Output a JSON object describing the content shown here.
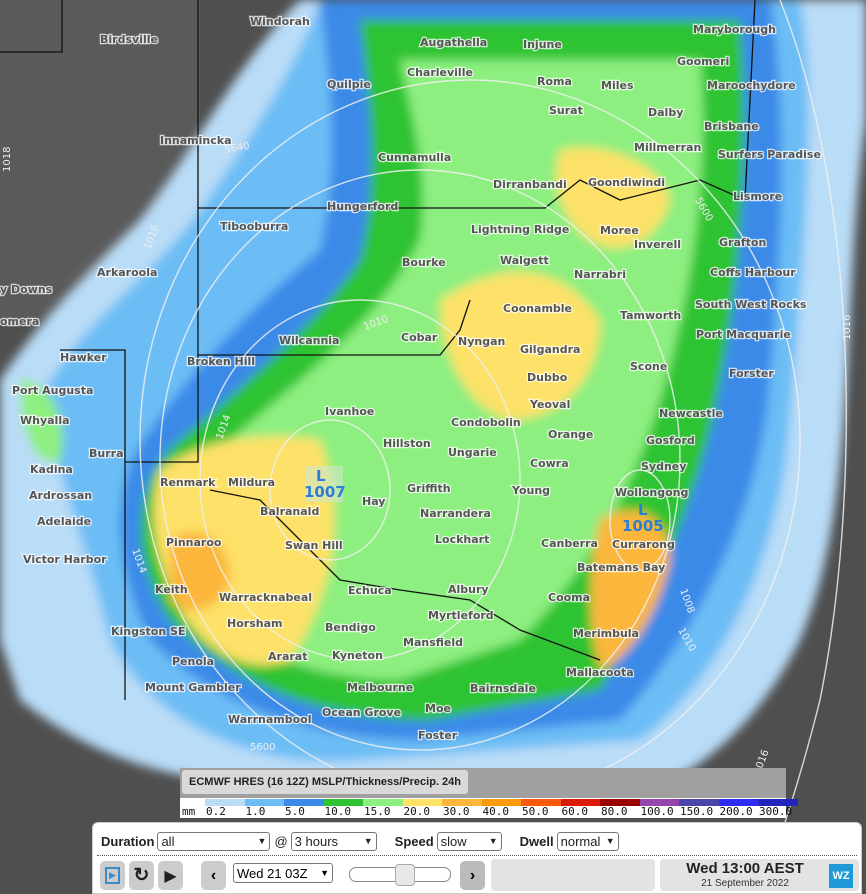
{
  "map": {
    "places": [
      "Windorah",
      "Birdsville",
      "Augathella",
      "Injune",
      "Maryborough",
      "Quilpie",
      "Charleville",
      "Roma",
      "Miles",
      "Goomeri",
      "Maroochydore",
      "Innamincka",
      "Surat",
      "Dalby",
      "Brisbane",
      "Millmerran",
      "Surfers Paradise",
      "Cunnamulla",
      "Dirranbandi",
      "Goondiwindi",
      "Hungerford",
      "Tibooburra",
      "Lismore",
      "Lightning Ridge",
      "Moree",
      "Inverell",
      "Grafton",
      "Bourke",
      "Walgett",
      "Narrabri",
      "Coffs Harbour",
      "Arkaroola",
      "y Downs",
      "Coonamble",
      "South West Rocks",
      "Tamworth",
      "omera",
      "Wilcannia",
      "Cobar",
      "Nyngan",
      "Gilgandra",
      "Port Macquarie",
      "Hawker",
      "Broken Hill",
      "Scone",
      "Forster",
      "Dubbo",
      "Port Augusta",
      "Yeoval",
      "Ivanhoe",
      "Newcastle",
      "Whyalla",
      "Condobolin",
      "Orange",
      "Hillston",
      "Gosford",
      "Ungarie",
      "Burra",
      "Sydney",
      "Cowra",
      "Kadina",
      "Renmark",
      "Mildura",
      "Griffith",
      "Young",
      "Ardrossan",
      "Wollongong",
      "Hay",
      "Balranald",
      "Narrandera",
      "Adelaide",
      "Currarong",
      "Lockhart",
      "Pinnaroo",
      "Swan Hill",
      "Canberra",
      "Victor Harbor",
      "Batemans Bay",
      "Keith",
      "Echuca",
      "Albury",
      "Warracknabeal",
      "Cooma",
      "Myrtleford",
      "Horsham",
      "Bendigo",
      "Kingston SE",
      "Merimbula",
      "Mansfield",
      "Ararat",
      "Kyneton",
      "Penola",
      "Mallacoota",
      "Mount Gambler",
      "Melbourne",
      "Bairnsdale",
      "Moe",
      "Ocean Grove",
      "Warrnambool",
      "Foster"
    ],
    "isobar_labels": [
      "1018",
      "5640",
      "1016",
      "1014",
      "1010",
      "5600",
      "1008",
      "1016",
      "1010",
      "1014",
      "5600",
      "1016"
    ],
    "lows": [
      {
        "letter": "L",
        "pressure": "1007"
      },
      {
        "letter": "L",
        "pressure": "1005"
      }
    ]
  },
  "legend": {
    "title": "ECMWF HRES (16 12Z) MSLP/Thickness/Precip. 24h",
    "unit": "mm",
    "ticks": [
      "0.2",
      "1.0",
      "5.0",
      "10.0",
      "15.0",
      "20.0",
      "30.0",
      "40.0",
      "50.0",
      "60.0",
      "80.0",
      "100.0",
      "150.0",
      "200.0",
      "300.0"
    ],
    "colors": [
      "#b9dcf7",
      "#6cbdf5",
      "#3a8ae8",
      "#2fc331",
      "#8def80",
      "#fde168",
      "#fbb63b",
      "#fb9a09",
      "#fb5a0c",
      "#da1b0a",
      "#9b0101",
      "#9645ab",
      "#4b46aa",
      "#2c2cf2",
      "#2323bd"
    ]
  },
  "controls": {
    "duration_label": "Duration",
    "duration_value": "all",
    "at": "@",
    "interval_value": "3 hours",
    "speed_label": "Speed",
    "speed_value": "slow",
    "dwell_label": "Dwell",
    "dwell_value": "normal",
    "frame_value": "Wed 21 03Z",
    "slider_fraction": 0.55,
    "time_main": "Wed 13:00 AEST",
    "time_date": "21 September 2022",
    "logo": "WZ"
  }
}
